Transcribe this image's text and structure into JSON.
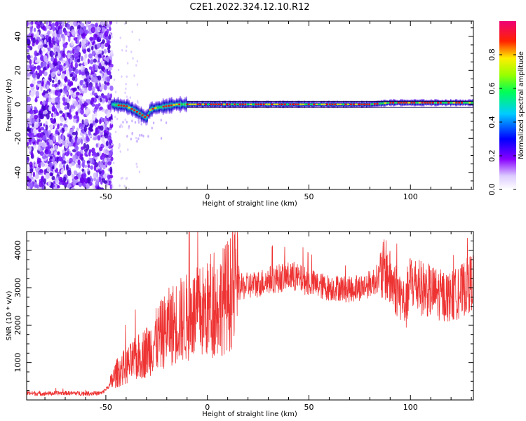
{
  "figure_title": "C2E1.2022.324.12.10.R12",
  "colors": {
    "snr_line": "#ee3333",
    "ridge": "#dd1111",
    "axes": "#000000"
  },
  "chart_data": [
    {
      "type": "heatmap",
      "title": "",
      "xlabel": "Height of straight line (km)",
      "ylabel": "Frequency (Hz)",
      "xlim": [
        -89,
        131
      ],
      "ylim": [
        -50,
        49
      ],
      "x_ticks": [
        -50,
        0,
        50,
        100
      ],
      "y_ticks": [
        -40,
        -20,
        0,
        20,
        40
      ],
      "colorbar": {
        "label": "Normalized spectral amplitude",
        "range": [
          0.0,
          1.0
        ],
        "ticks": [
          "0.0",
          "0.2",
          "0.4",
          "0.6",
          "0.8"
        ],
        "colormap": "rainbow (white-violet-blue-cyan-green-yellow-red-magenta)"
      },
      "ridge_frequency": {
        "x": [
          -47,
          -40,
          -35,
          -30,
          -28,
          -25,
          -20,
          -15,
          -10,
          -5,
          0,
          10,
          20,
          40,
          60,
          80,
          90,
          95,
          100,
          110,
          120,
          131
        ],
        "y": [
          0,
          -1,
          -4,
          -8,
          -3,
          -2,
          -1,
          0,
          0,
          0,
          0,
          0,
          0,
          0,
          0,
          0,
          1,
          1,
          1,
          1,
          1,
          1
        ]
      },
      "noise_region_x": [
        -89,
        -47
      ]
    },
    {
      "type": "line",
      "title": "",
      "xlabel": "Height of straight line (km)",
      "ylabel": "SNR (10 * v/v)",
      "xlim": [
        -89,
        131
      ],
      "ylim": [
        0,
        4500
      ],
      "x_ticks": [
        -50,
        0,
        50,
        100
      ],
      "y_ticks": [
        1000,
        2000,
        3000,
        4000
      ],
      "series": [
        {
          "x": [
            -89,
            -80,
            -70,
            -60,
            -52,
            -48,
            -45,
            -40,
            -35,
            -30,
            -25,
            -20,
            -15,
            -10,
            -5,
            0,
            5,
            10,
            15,
            20,
            25,
            30,
            35,
            40,
            45,
            50,
            55,
            60,
            65,
            70,
            75,
            80,
            85,
            88,
            90,
            95,
            98,
            100,
            105,
            110,
            115,
            120,
            125,
            131
          ],
          "values": [
            180,
            170,
            185,
            175,
            180,
            400,
            700,
            900,
            1100,
            1300,
            1600,
            1900,
            2100,
            2200,
            2300,
            2400,
            2500,
            2800,
            3000,
            3050,
            3100,
            3200,
            3250,
            3300,
            3250,
            3150,
            3050,
            3000,
            3000,
            2950,
            3000,
            3100,
            3300,
            3500,
            3200,
            2800,
            2500,
            3200,
            3000,
            2900,
            2800,
            2750,
            2900,
            3200
          ]
        }
      ]
    }
  ]
}
